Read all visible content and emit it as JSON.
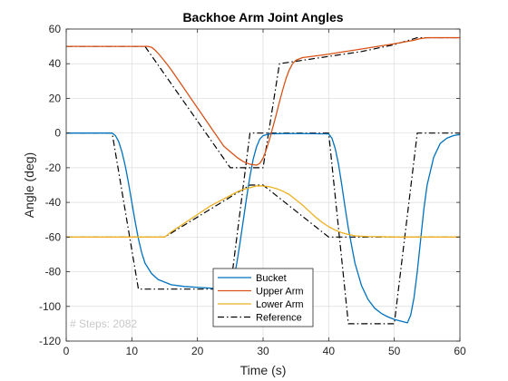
{
  "chart_data": {
    "type": "line",
    "title": "Backhoe Arm Joint Angles",
    "xlabel": "Time (s)",
    "ylabel": "Angle (deg)",
    "xlim": [
      0,
      60
    ],
    "ylim": [
      -120,
      60
    ],
    "xticks": [
      0,
      10,
      20,
      30,
      40,
      50,
      60
    ],
    "yticks": [
      -120,
      -100,
      -80,
      -60,
      -40,
      -20,
      0,
      20,
      40,
      60
    ],
    "grid": true,
    "legend_position": "bottom-center",
    "annotation": "# Steps: 2082",
    "series": [
      {
        "name": "Bucket",
        "color": "#0072BD",
        "dash": "solid",
        "x": [
          0,
          7,
          7.5,
          8,
          8.5,
          9,
          9.5,
          10,
          10.5,
          11,
          11.5,
          12,
          13,
          14,
          16,
          18,
          20,
          22,
          24,
          25,
          25.5,
          26,
          26.5,
          27,
          27.5,
          28,
          28.5,
          29,
          29.5,
          30,
          31,
          33,
          36,
          40,
          40.5,
          41,
          41.5,
          42,
          42.5,
          43,
          44,
          45,
          46,
          47,
          48,
          49,
          50,
          51,
          52,
          52.5,
          53,
          53.5,
          54,
          54.5,
          55,
          56,
          57,
          58,
          59,
          60
        ],
        "y": [
          0,
          0,
          -1.5,
          -5,
          -11,
          -19,
          -29,
          -40,
          -51,
          -61,
          -69,
          -75,
          -81,
          -84.5,
          -87.5,
          -88.5,
          -89,
          -89.5,
          -89.8,
          -89.8,
          -85,
          -75,
          -63,
          -50,
          -37,
          -25,
          -15,
          -8,
          -3.5,
          -1.5,
          -0.5,
          -0.3,
          -0.3,
          -0.5,
          -3,
          -9,
          -18,
          -30,
          -43,
          -55,
          -75,
          -88,
          -96,
          -101,
          -104,
          -106,
          -107.5,
          -108.5,
          -109.5,
          -105,
          -95,
          -80,
          -62,
          -44,
          -30,
          -14,
          -6,
          -3,
          -1.5,
          -0.8
        ]
      },
      {
        "name": "Upper Arm",
        "color": "#D95319",
        "dash": "solid",
        "x": [
          0,
          12.5,
          13,
          13.5,
          14,
          15,
          16,
          18,
          20,
          22,
          24,
          26,
          27,
          28,
          29,
          29.5,
          30,
          30.5,
          31,
          31.5,
          32,
          32.5,
          33,
          33.5,
          34,
          34.5,
          35,
          36,
          38,
          40,
          45,
          50,
          53,
          54,
          55,
          56,
          60
        ],
        "y": [
          50,
          50,
          49.5,
          48,
          46,
          41.5,
          36.5,
          25.5,
          14.5,
          3.5,
          -7.5,
          -14,
          -16.5,
          -18,
          -18.5,
          -17.5,
          -14.5,
          -9.5,
          -3.5,
          3.5,
          10.5,
          18,
          25,
          31.5,
          36.5,
          40,
          42,
          43.5,
          44.5,
          45.5,
          48.5,
          51.5,
          53.5,
          54.5,
          55,
          55,
          55
        ]
      },
      {
        "name": "Lower Arm",
        "color": "#EDB120",
        "dash": "solid",
        "x": [
          0,
          15,
          16,
          18,
          20,
          22,
          24,
          26,
          27,
          28,
          29,
          30,
          31,
          32,
          33,
          34,
          35,
          36,
          37,
          38,
          39,
          40,
          41,
          42,
          43,
          44,
          46,
          48,
          50,
          60
        ],
        "y": [
          -60,
          -60,
          -57,
          -52,
          -47,
          -42,
          -38,
          -34,
          -32.5,
          -31.5,
          -30.5,
          -30.5,
          -31,
          -32,
          -33.5,
          -35.5,
          -38.5,
          -41.5,
          -45,
          -48.5,
          -51.5,
          -54,
          -56,
          -57.5,
          -58.5,
          -59.3,
          -59.7,
          -59.8,
          -60,
          -60
        ]
      },
      {
        "name": "Reference",
        "color": "#000000",
        "dash": "dashdot",
        "x": [
          0,
          7,
          11,
          25,
          28,
          40,
          43,
          50,
          53.5,
          60
        ],
        "y": [
          0,
          0,
          -90,
          -90,
          0,
          0,
          -110,
          -110,
          0,
          0
        ]
      },
      {
        "name": "",
        "color": "#000000",
        "dash": "dashdot",
        "x": [
          0,
          12,
          25,
          28,
          30,
          32.5,
          45,
          50,
          53.5,
          60
        ],
        "y": [
          50,
          50,
          -20,
          -20,
          -20,
          40,
          47,
          51,
          55,
          55
        ]
      },
      {
        "name": "",
        "color": "#000000",
        "dash": "dashdot",
        "x": [
          0,
          15,
          28,
          30,
          40,
          60
        ],
        "y": [
          -60,
          -60,
          -30,
          -30,
          -60,
          -60
        ]
      }
    ]
  }
}
